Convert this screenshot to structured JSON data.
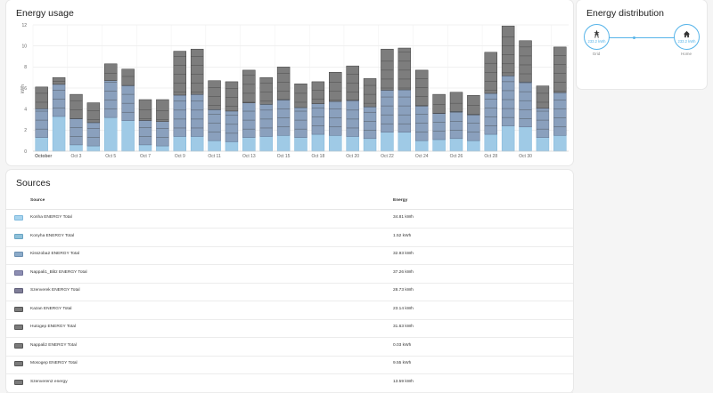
{
  "usage_card": {
    "title": "Energy usage"
  },
  "dist_card": {
    "title": "Energy distribution",
    "grid": {
      "label": "Grid",
      "value": "233.2 kWh",
      "icon": "transmission-tower-icon"
    },
    "home": {
      "label": "Home",
      "value": "233.2 kWh",
      "icon": "home-icon"
    }
  },
  "sources_card": {
    "title": "Sources",
    "col_source": "Source",
    "col_energy": "Energy",
    "rows": [
      {
        "name": "Konha ENERGY Total",
        "energy": "34.81 kWh",
        "color": "#a8d4ee",
        "border": "#7fb9dd"
      },
      {
        "name": "Konyha ENERGY Total",
        "energy": "1.52 kWh",
        "color": "#8fc1d9",
        "border": "#6aa5c4"
      },
      {
        "name": "Kisszoba2 ENERGY Total",
        "energy": "32.93 kWh",
        "color": "#8cabc9",
        "border": "#6b8fb0"
      },
      {
        "name": "Nappali1_Blitz ENERGY Total",
        "energy": "37.26 kWh",
        "color": "#8d8eb3",
        "border": "#6f7097"
      },
      {
        "name": "Szenverek ENERGY Total",
        "energy": "28.73 kWh",
        "color": "#7f7e98",
        "border": "#5f5e78"
      },
      {
        "name": "Kazan ENERGY Total",
        "energy": "23.14 kWh",
        "color": "#7b7b7b",
        "border": "#555555"
      },
      {
        "name": "Hutogep ENERGY Total",
        "energy": "31.63 kWh",
        "color": "#7b7b7b",
        "border": "#555555"
      },
      {
        "name": "Nappali2 ENERGY Total",
        "energy": "0.03 kWh",
        "color": "#7b7b7b",
        "border": "#555555"
      },
      {
        "name": "Mosogep ENERGY Total",
        "energy": "9.55 kWh",
        "color": "#7b7b7b",
        "border": "#555555"
      },
      {
        "name": "Szenveren2 energy",
        "energy": "13.59 kWh",
        "color": "#7b7b7b",
        "border": "#555555"
      }
    ]
  },
  "chart_data": {
    "type": "bar",
    "ylabel": "kWh",
    "ylim": [
      0,
      12
    ],
    "yticks": [
      0,
      2,
      4,
      6,
      8,
      10,
      12
    ],
    "grid": true,
    "stacked": true,
    "x_tick_labels": [
      "October",
      "Oct 3",
      "Oct 5",
      "Oct 7",
      "Oct 9",
      "Oct 11",
      "Oct 13",
      "Oct 15",
      "Oct 18",
      "Oct 20",
      "Oct 22",
      "Oct 24",
      "Oct 26",
      "Oct 28",
      "Oct 30"
    ],
    "totals": [
      6.1,
      7.0,
      5.4,
      4.6,
      8.3,
      7.8,
      4.9,
      4.9,
      9.5,
      9.7,
      6.7,
      6.6,
      7.7,
      7.0,
      8.0,
      6.4,
      6.6,
      7.5,
      8.1,
      6.9,
      9.7,
      9.8,
      7.7,
      5.4,
      5.6,
      5.3,
      9.4,
      11.9,
      10.5,
      6.2,
      9.9
    ],
    "light_blue_values": [
      1.3,
      3.3,
      0.6,
      0.5,
      3.2,
      2.9,
      0.6,
      0.5,
      1.4,
      1.4,
      1.0,
      0.9,
      1.3,
      1.4,
      1.5,
      1.3,
      1.6,
      1.5,
      1.4,
      1.2,
      1.8,
      1.8,
      1.0,
      1.1,
      1.2,
      1.0,
      1.6,
      2.4,
      2.3,
      1.3,
      1.5
    ],
    "colors": {
      "light_blue": "#9fcae6",
      "blue_gray": "#8aa0bd",
      "gray": "#7d7d7d"
    }
  }
}
